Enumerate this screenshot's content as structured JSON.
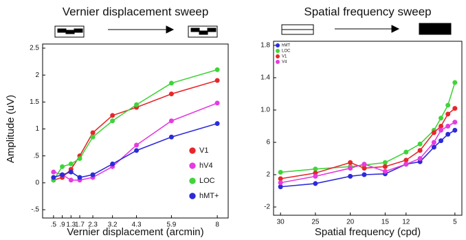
{
  "chart_data": [
    {
      "type": "scatter",
      "title": "Vernier displacement sweep",
      "xlabel": "Vernier displacement (arcmin)",
      "ylabel": "Amplitude (uV)",
      "x": [
        0.5,
        0.9,
        1.3,
        1.7,
        2.3,
        3.2,
        4.3,
        5.9,
        8
      ],
      "series": [
        {
          "name": "V1",
          "color": "#e8262b",
          "values": [
            0.05,
            0.1,
            0.25,
            0.5,
            0.93,
            1.25,
            1.4,
            1.65,
            1.9
          ]
        },
        {
          "name": "hV4",
          "color": "#e53be0",
          "values": [
            0.2,
            0.15,
            0.05,
            0.05,
            0.1,
            0.3,
            0.7,
            1.15,
            1.48
          ]
        },
        {
          "name": "LOC",
          "color": "#3fd43a",
          "values": [
            0.05,
            0.3,
            0.35,
            0.45,
            0.85,
            1.15,
            1.45,
            1.85,
            2.1
          ]
        },
        {
          "name": "hMT+",
          "color": "#2b2bd8",
          "values": [
            0.1,
            0.15,
            0.2,
            0.1,
            0.15,
            0.35,
            0.6,
            0.85,
            1.1
          ]
        }
      ],
      "xlim": [
        0,
        8.5
      ],
      "ylim": [
        -0.5,
        2.5
      ],
      "xticks": [
        {
          "value": 0.5,
          "label": ".5"
        },
        {
          "value": 0.9,
          "label": ".9"
        },
        1.3,
        1.7,
        2.3,
        3.2,
        4.3,
        5.9,
        8
      ],
      "yticks": [
        {
          "value": -0.5,
          "label": "-.5"
        },
        0,
        {
          "value": 0.5,
          "label": ".5"
        },
        1,
        1.5,
        2,
        2.5
      ],
      "legend": "lower right"
    },
    {
      "type": "scatter",
      "title": "Spatial frequency sweep",
      "xlabel": "Spatial frequency (cpd)",
      "x": [
        30,
        25,
        20,
        18,
        15,
        12,
        10,
        8,
        7,
        6,
        5
      ],
      "series": [
        {
          "name": "hMT",
          "color": "#2b2bd8",
          "values": [
            0.5,
            0.9,
            1.8,
            2.0,
            2.1,
            3.3,
            3.6,
            5.4,
            6.2,
            7.0,
            7.5
          ]
        },
        {
          "name": "LOC",
          "color": "#3fd43a",
          "values": [
            2.3,
            2.7,
            3.0,
            3.2,
            3.5,
            4.8,
            5.8,
            7.5,
            9.0,
            10.6,
            13.4
          ]
        },
        {
          "name": "V1",
          "color": "#e8262b",
          "values": [
            1.5,
            2.2,
            3.5,
            2.8,
            3.0,
            3.8,
            5.0,
            7.2,
            8.0,
            9.5,
            10.2
          ]
        },
        {
          "name": "V4",
          "color": "#e53be0",
          "values": [
            1.0,
            1.8,
            2.8,
            3.3,
            2.4,
            3.3,
            4.0,
            6.0,
            7.5,
            8.0,
            8.5
          ]
        }
      ],
      "xlim": [
        31,
        4
      ],
      "ylim": [
        -2,
        18
      ],
      "xticks": [
        30,
        25,
        20,
        15,
        12,
        5
      ],
      "yticks": [
        -2,
        2,
        6,
        {
          "value": 10,
          "label": "1.0"
        },
        {
          "value": 14,
          "label": "1.4"
        },
        {
          "value": 18,
          "label": "1.8"
        }
      ],
      "legend": "upper left"
    }
  ]
}
